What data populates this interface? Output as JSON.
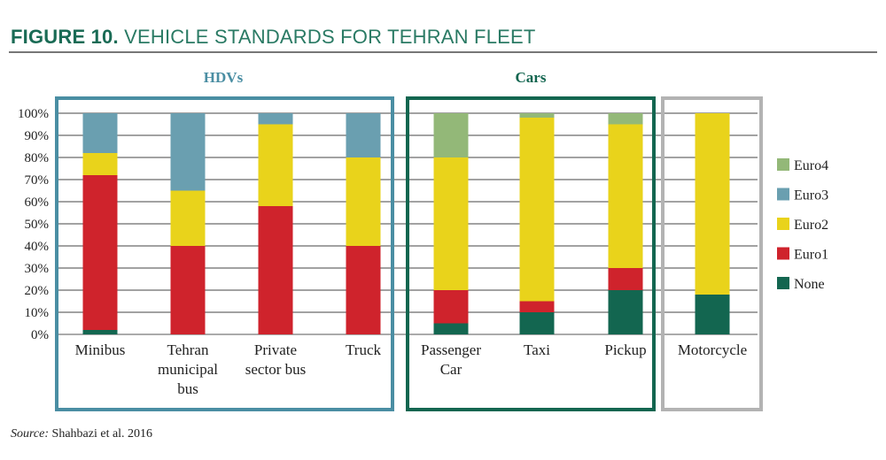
{
  "title": {
    "figure": "FIGURE 10.",
    "text": "VEHICLE STANDARDS FOR TEHRAN FLEET"
  },
  "source": {
    "label": "Source:",
    "text": "Shahbazi et al. 2016"
  },
  "chart_data": {
    "type": "bar",
    "stacked": true,
    "title": "Vehicle standards for Tehran fleet",
    "ylabel": "",
    "ylim": [
      0,
      100
    ],
    "yticks": [
      "0%",
      "10%",
      "20%",
      "30%",
      "40%",
      "50%",
      "60%",
      "70%",
      "80%",
      "90%",
      "100%"
    ],
    "grid": true,
    "legend_position": "right",
    "groups": [
      {
        "label": "HDVs",
        "color": "#4a8ea3",
        "categories": [
          0,
          1,
          2,
          3
        ]
      },
      {
        "label": "Cars",
        "color": "#136650",
        "categories": [
          4,
          5,
          6
        ]
      },
      {
        "label": "",
        "color": "#b3b3b3",
        "categories": [
          7
        ]
      }
    ],
    "categories": [
      [
        "Minibus"
      ],
      [
        "Tehran",
        "municipal",
        "bus"
      ],
      [
        "Private",
        "sector bus"
      ],
      [
        "Truck"
      ],
      [
        "Passenger",
        "Car"
      ],
      [
        "Taxi"
      ],
      [
        "Pickup"
      ],
      [
        "Motorcycle"
      ]
    ],
    "series": [
      {
        "name": "None",
        "color": "#136650",
        "values": [
          2,
          0,
          0,
          0,
          5,
          10,
          20,
          18
        ]
      },
      {
        "name": "Euro1",
        "color": "#cf232c",
        "values": [
          70,
          40,
          58,
          40,
          15,
          5,
          10,
          0
        ]
      },
      {
        "name": "Euro2",
        "color": "#e9d31b",
        "values": [
          10,
          25,
          37,
          40,
          60,
          83,
          65,
          82
        ]
      },
      {
        "name": "Euro3",
        "color": "#6a9fb0",
        "values": [
          18,
          35,
          5,
          20,
          0,
          0,
          0,
          0
        ]
      },
      {
        "name": "Euro4",
        "color": "#93b878",
        "values": [
          0,
          0,
          0,
          0,
          20,
          2,
          5,
          0
        ]
      }
    ],
    "legend_order": [
      "Euro4",
      "Euro3",
      "Euro2",
      "Euro1",
      "None"
    ]
  }
}
